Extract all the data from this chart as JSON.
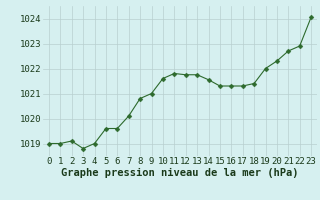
{
  "x": [
    0,
    1,
    2,
    3,
    4,
    5,
    6,
    7,
    8,
    9,
    10,
    11,
    12,
    13,
    14,
    15,
    16,
    17,
    18,
    19,
    20,
    21,
    22,
    23
  ],
  "y": [
    1019.0,
    1019.0,
    1019.1,
    1018.8,
    1019.0,
    1019.6,
    1019.6,
    1020.1,
    1020.8,
    1021.0,
    1021.6,
    1021.8,
    1021.75,
    1021.75,
    1021.55,
    1021.3,
    1021.3,
    1021.3,
    1021.4,
    1022.0,
    1022.3,
    1022.7,
    1022.9,
    1024.05
  ],
  "line_color": "#2d6a2d",
  "marker": "D",
  "marker_size": 2.5,
  "bg_color": "#d6f0f0",
  "grid_color": "#b8d0d0",
  "xlabel": "Graphe pression niveau de la mer (hPa)",
  "xlabel_color": "#1a3a1a",
  "xlabel_fontsize": 7.5,
  "tick_label_color": "#1a3a1a",
  "tick_fontsize": 6.5,
  "ylim": [
    1018.5,
    1024.5
  ],
  "xlim": [
    -0.5,
    23.5
  ],
  "yticks": [
    1019,
    1020,
    1021,
    1022,
    1023,
    1024
  ],
  "xticks": [
    0,
    1,
    2,
    3,
    4,
    5,
    6,
    7,
    8,
    9,
    10,
    11,
    12,
    13,
    14,
    15,
    16,
    17,
    18,
    19,
    20,
    21,
    22,
    23
  ]
}
